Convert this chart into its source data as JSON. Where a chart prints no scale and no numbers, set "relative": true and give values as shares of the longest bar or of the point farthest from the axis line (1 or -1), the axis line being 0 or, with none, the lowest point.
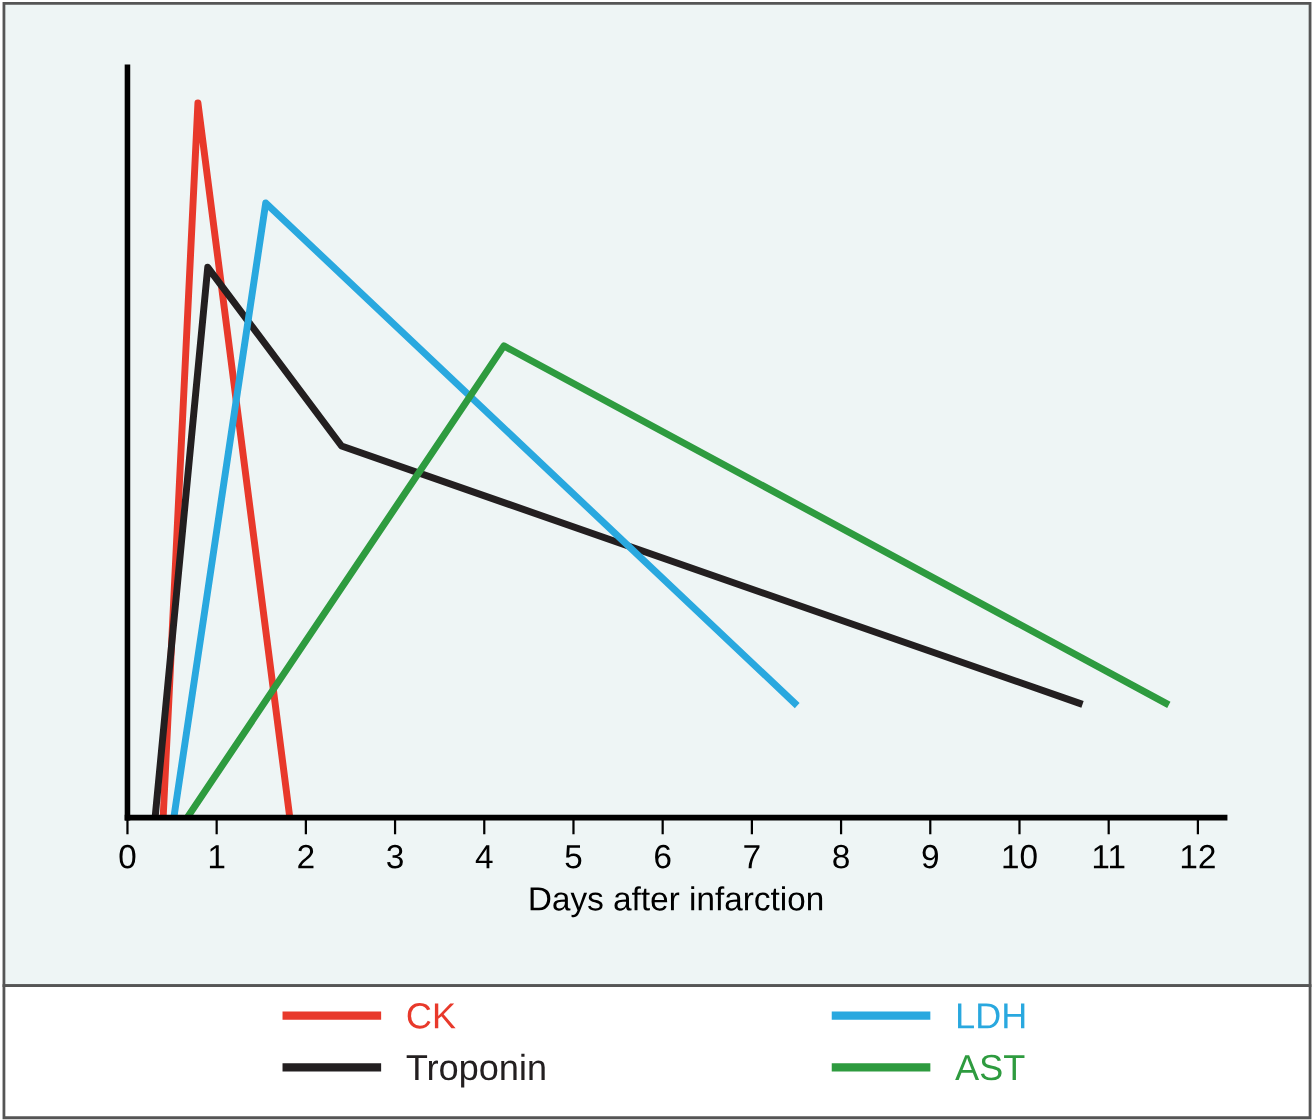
{
  "chart_data": {
    "type": "line",
    "relative": true,
    "xlabel": "Days after infarction",
    "xlim": [
      0,
      12.3
    ],
    "xticks": [
      0,
      1,
      2,
      3,
      4,
      5,
      6,
      7,
      8,
      9,
      10,
      11,
      12
    ],
    "legend": "bottom",
    "grid": false,
    "marker": "none",
    "line_style": "solid",
    "series": [
      {
        "name": "CK",
        "color": "#e8392b",
        "x": [
          0.4,
          0.79,
          1.82
        ],
        "values": [
          0,
          1,
          0
        ]
      },
      {
        "name": "Troponin",
        "color": "#231f20",
        "x": [
          0.31,
          0.9,
          2.4,
          10.67
        ],
        "values": [
          0,
          0.77,
          0.52,
          0.16
        ]
      },
      {
        "name": "LDH",
        "color": "#29a8df",
        "x": [
          0.52,
          1.55,
          7.48
        ],
        "values": [
          0,
          0.86,
          0.16
        ]
      },
      {
        "name": "AST",
        "color": "#2e9b3f",
        "x": [
          0.67,
          4.22,
          11.64
        ],
        "values": [
          0,
          0.66,
          0.16
        ]
      }
    ]
  }
}
